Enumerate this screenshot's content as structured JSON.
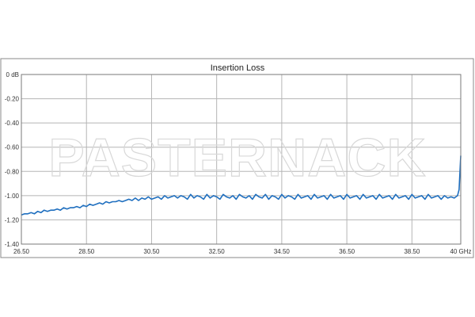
{
  "chart_data": {
    "type": "line",
    "title": "Insertion Loss",
    "xlabel": "",
    "ylabel": "",
    "xlim": [
      26.5,
      40
    ],
    "ylim": [
      -1.4,
      0
    ],
    "grid": true,
    "legend": "none",
    "x_ticks": [
      26.5,
      28.5,
      30.5,
      32.5,
      34.5,
      36.5,
      38.5,
      40
    ],
    "x_tick_labels": [
      "26.50",
      "28.50",
      "30.50",
      "32.50",
      "34.50",
      "36.50",
      "38.50",
      "40 GHz"
    ],
    "y_ticks": [
      0,
      -0.2,
      -0.4,
      -0.6,
      -0.8,
      -1.0,
      -1.2,
      -1.4
    ],
    "y_tick_labels": [
      "0 dB",
      "-0.20",
      "-0.40",
      "-0.60",
      "-0.80",
      "-1.00",
      "-1.20",
      "-1.40"
    ],
    "series": [
      {
        "color": "#1f6fbf",
        "x": [
          26.5,
          26.6,
          26.7,
          26.8,
          26.9,
          27.0,
          27.1,
          27.2,
          27.3,
          27.4,
          27.5,
          27.6,
          27.7,
          27.8,
          27.9,
          28.0,
          28.1,
          28.2,
          28.3,
          28.4,
          28.5,
          28.6,
          28.7,
          28.8,
          28.9,
          29.0,
          29.1,
          29.2,
          29.3,
          29.4,
          29.5,
          29.6,
          29.7,
          29.8,
          29.9,
          30.0,
          30.1,
          30.2,
          30.3,
          30.4,
          30.5,
          30.6,
          30.7,
          30.8,
          30.9,
          31.0,
          31.1,
          31.2,
          31.3,
          31.4,
          31.5,
          31.6,
          31.7,
          31.8,
          31.9,
          32.0,
          32.1,
          32.2,
          32.3,
          32.4,
          32.5,
          32.6,
          32.7,
          32.8,
          32.9,
          33.0,
          33.1,
          33.2,
          33.3,
          33.4,
          33.5,
          33.6,
          33.7,
          33.8,
          33.9,
          34.0,
          34.1,
          34.2,
          34.3,
          34.4,
          34.5,
          34.6,
          34.7,
          34.8,
          34.9,
          35.0,
          35.1,
          35.2,
          35.3,
          35.4,
          35.5,
          35.6,
          35.7,
          35.8,
          35.9,
          36.0,
          36.1,
          36.2,
          36.3,
          36.4,
          36.5,
          36.6,
          36.7,
          36.8,
          36.9,
          37.0,
          37.1,
          37.2,
          37.3,
          37.4,
          37.5,
          37.6,
          37.7,
          37.8,
          37.9,
          38.0,
          38.1,
          38.2,
          38.3,
          38.4,
          38.5,
          38.6,
          38.7,
          38.8,
          38.9,
          39.0,
          39.1,
          39.2,
          39.3,
          39.4,
          39.5,
          39.6,
          39.7,
          39.8,
          39.9,
          39.95,
          40.0
        ],
        "y": [
          -1.16,
          -1.15,
          -1.15,
          -1.14,
          -1.15,
          -1.13,
          -1.14,
          -1.12,
          -1.13,
          -1.12,
          -1.12,
          -1.11,
          -1.12,
          -1.1,
          -1.11,
          -1.1,
          -1.1,
          -1.09,
          -1.1,
          -1.08,
          -1.09,
          -1.07,
          -1.08,
          -1.07,
          -1.06,
          -1.07,
          -1.05,
          -1.06,
          -1.05,
          -1.05,
          -1.04,
          -1.05,
          -1.04,
          -1.03,
          -1.04,
          -1.02,
          -1.04,
          -1.02,
          -1.03,
          -1.01,
          -1.03,
          -1.02,
          -1.01,
          -1.03,
          -1.0,
          -1.02,
          -1.01,
          -1.0,
          -1.02,
          -1.0,
          -1.01,
          -1.03,
          -0.99,
          -1.02,
          -1.0,
          -1.01,
          -1.03,
          -0.99,
          -1.02,
          -1.0,
          -1.01,
          -1.03,
          -0.99,
          -1.01,
          -1.02,
          -1.0,
          -1.03,
          -0.99,
          -1.01,
          -1.02,
          -1.0,
          -1.03,
          -0.99,
          -1.01,
          -1.02,
          -0.99,
          -1.03,
          -1.0,
          -1.01,
          -1.03,
          -0.99,
          -1.02,
          -1.0,
          -1.01,
          -1.03,
          -0.99,
          -1.02,
          -1.01,
          -1.0,
          -1.03,
          -0.99,
          -1.02,
          -1.01,
          -1.0,
          -1.03,
          -0.99,
          -1.02,
          -1.01,
          -1.0,
          -1.03,
          -0.99,
          -1.02,
          -1.01,
          -1.0,
          -1.03,
          -0.99,
          -1.02,
          -1.01,
          -1.0,
          -1.03,
          -0.99,
          -1.02,
          -1.01,
          -1.0,
          -1.03,
          -0.99,
          -1.02,
          -1.01,
          -1.0,
          -1.03,
          -0.99,
          -1.02,
          -1.01,
          -1.0,
          -1.03,
          -0.99,
          -1.02,
          -1.01,
          -1.0,
          -1.03,
          -1.0,
          -1.02,
          -1.01,
          -1.02,
          -1.0,
          -0.95,
          -0.67
        ]
      }
    ]
  },
  "watermark": "PASTERNACK"
}
